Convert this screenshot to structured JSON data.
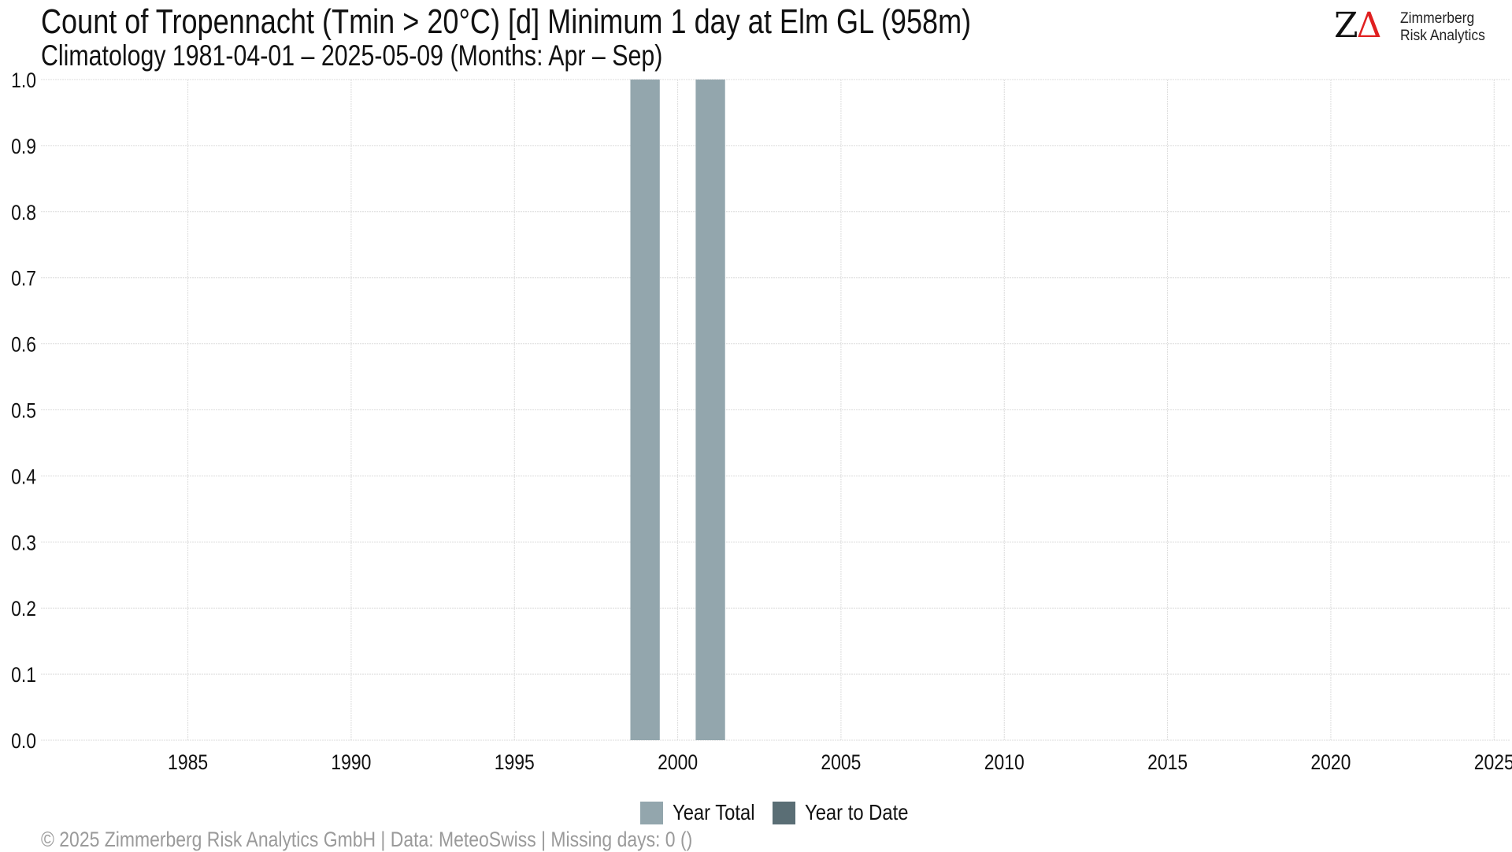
{
  "header": {
    "title": "Count of Tropennacht (Tmin > 20°C) [d] Minimum 1 day at Elm  GL (958m)",
    "subtitle": "Climatology 1981-04-01 – 2025-05-09 (Months: Apr – Sep)"
  },
  "logo": {
    "line1": "Zimmerberg",
    "line2": "Risk Analytics",
    "mark_letter": "Z",
    "mark_symbol": "Δ"
  },
  "footer": {
    "text": "©  2025 Zimmerberg Risk Analytics GmbH | Data: MeteoSwiss | Missing days: 0 ()"
  },
  "colors": {
    "year_total": "#93a6ad",
    "year_to_date": "#5a6e75",
    "grid": "#dcdcdc",
    "accent": "#e02020"
  },
  "chart_data": {
    "type": "bar",
    "x_range": [
      1981,
      2025
    ],
    "ylim": [
      0,
      1.0
    ],
    "x_ticks": [
      1985,
      1990,
      1995,
      2000,
      2005,
      2010,
      2015,
      2020,
      2025
    ],
    "y_ticks": [
      0.0,
      0.1,
      0.2,
      0.3,
      0.4,
      0.5,
      0.6,
      0.7,
      0.8,
      0.9,
      1.0
    ],
    "y_tick_labels": [
      "0.0",
      "0.1",
      "0.2",
      "0.3",
      "0.4",
      "0.5",
      "0.6",
      "0.7",
      "0.8",
      "0.9",
      "1.0"
    ],
    "grid": true,
    "legend_position": "bottom",
    "series": [
      {
        "name": "Year Total",
        "color": "#93a6ad",
        "points": [
          {
            "x": 1999,
            "y": 1
          },
          {
            "x": 2001,
            "y": 1
          }
        ]
      },
      {
        "name": "Year to Date",
        "color": "#5a6e75",
        "points": []
      }
    ]
  }
}
